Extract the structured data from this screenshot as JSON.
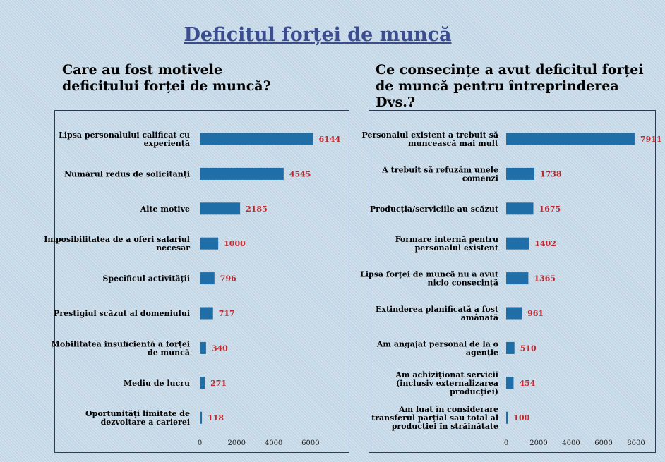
{
  "title": "Deficitul forței de muncă",
  "chart_data": [
    {
      "type": "bar",
      "orientation": "horizontal",
      "title": "Care au fost motivele deficitului forței de muncă?",
      "categories": [
        [
          "Lipsa personalului calificat cu",
          "experiență"
        ],
        [
          "Numărul redus de solicitanți"
        ],
        [
          "Alte motive"
        ],
        [
          "Imposibilitatea de a oferi salariul",
          "necesar"
        ],
        [
          "Specificul activității"
        ],
        [
          "Prestigiul scăzut al domeniului"
        ],
        [
          "Mobilitatea insuficientă a forței",
          "de muncă"
        ],
        [
          "Mediu de lucru"
        ],
        [
          "Oportunități limitate de",
          "dezvoltare a carierei"
        ]
      ],
      "values": [
        6144,
        4545,
        2185,
        1000,
        796,
        717,
        340,
        271,
        118
      ],
      "xlim": [
        0,
        7000
      ],
      "xticks": [
        "0",
        "2000",
        "4000",
        "6000"
      ],
      "bar_color": "#1f6ea8",
      "label_color": "#c0282d"
    },
    {
      "type": "bar",
      "orientation": "horizontal",
      "title": "Ce consecințe a avut deficitul forței de muncă pentru întreprinderea Dvs.?",
      "categories": [
        [
          "Personalul existent a trebuit să",
          "muncească mai mult"
        ],
        [
          "A trebuit să refuzăm unele",
          "comenzi"
        ],
        [
          "Producția/serviciile au scăzut"
        ],
        [
          "Formare internă pentru",
          "personalul existent"
        ],
        [
          "Lipsa forței de muncă nu a avut",
          "nicio consecință"
        ],
        [
          "Extinderea planificată a fost",
          "amânată"
        ],
        [
          "Am angajat personal de la o",
          "agenție"
        ],
        [
          "Am achiziționat servicii",
          "(inclusiv externalizarea",
          "producției)"
        ],
        [
          "Am luat în considerare",
          "transferul parțial sau total al",
          "producției în străinătate"
        ]
      ],
      "values": [
        7911,
        1738,
        1675,
        1402,
        1365,
        961,
        510,
        454,
        100
      ],
      "xlim": [
        0,
        9000
      ],
      "xticks": [
        "0",
        "2000",
        "4000",
        "6000",
        "8000"
      ],
      "bar_color": "#1f6ea8",
      "label_color": "#c0282d"
    }
  ]
}
